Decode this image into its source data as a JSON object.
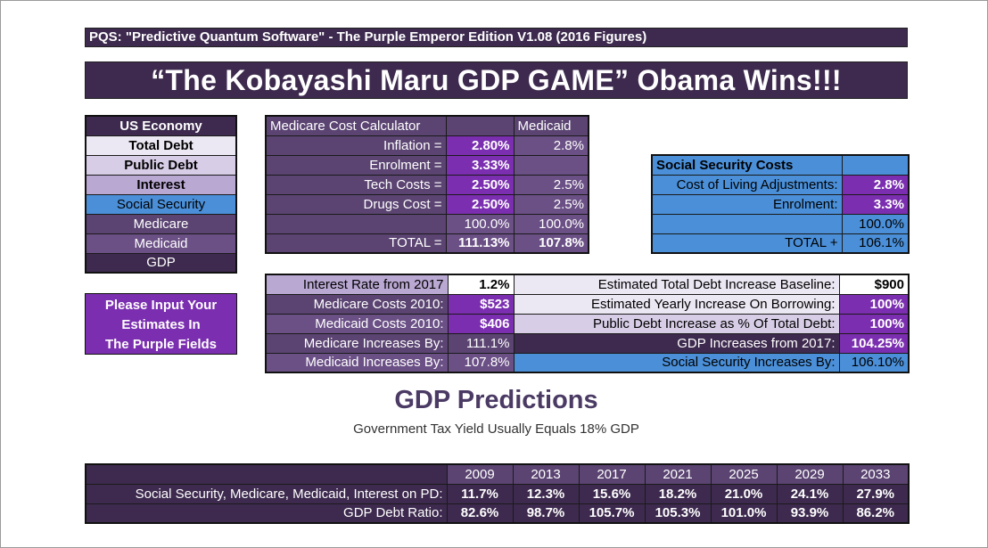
{
  "header": {
    "subtitle": "PQS: \"Predictive Quantum Software\" - The Purple Emperor Edition V1.08 (2016 Figures)",
    "title": "“The Kobayashi Maru GDP GAME” Obama Wins!!!"
  },
  "us_economy": {
    "heading": "US Economy",
    "items": [
      "Total Debt",
      "Public Debt",
      "Interest",
      "Social Security",
      "Medicare",
      "Medicaid",
      "GDP"
    ]
  },
  "input_prompt": {
    "lines": [
      "Please Input Your",
      "Estimates In",
      "The Purple Fields"
    ]
  },
  "medicare_calc": {
    "heading": "Medicare Cost Calculator",
    "medicaid_heading": "Medicaid",
    "rows": [
      {
        "label": "Inflation =",
        "medicare": "2.80%",
        "medicaid": "2.8%"
      },
      {
        "label": "Enrolment =",
        "medicare": "3.33%",
        "medicaid": ""
      },
      {
        "label": "Tech Costs =",
        "medicare": "2.50%",
        "medicaid": "2.5%"
      },
      {
        "label": "Drugs Cost =",
        "medicare": "2.50%",
        "medicaid": "2.5%"
      },
      {
        "label": "",
        "medicare": "100.0%",
        "medicaid": "100.0%"
      },
      {
        "label": "TOTAL =",
        "medicare": "111.13%",
        "medicaid": "107.8%"
      }
    ]
  },
  "social_security": {
    "heading": "Social Security Costs",
    "rows": [
      {
        "label": "Cost of Living Adjustments:",
        "value": "2.8%"
      },
      {
        "label": "Enrolment:",
        "value": "3.3%"
      },
      {
        "label": "",
        "value": "100.0%"
      },
      {
        "label": "TOTAL +",
        "value": "106.1%"
      }
    ]
  },
  "params_left": [
    {
      "label": "Interest Rate from 2017",
      "value": "1.2%"
    },
    {
      "label": "Medicare Costs 2010:",
      "value": "$523"
    },
    {
      "label": "Medicaid Costs 2010:",
      "value": "$406"
    },
    {
      "label": "Medicare Increases By:",
      "value": "111.1%"
    },
    {
      "label": "Medicaid Increases By:",
      "value": "107.8%"
    }
  ],
  "params_right": [
    {
      "label": "Estimated Total Debt Increase Baseline:",
      "value": "$900"
    },
    {
      "label": "Estimated Yearly Increase On Borrowing:",
      "value": "100%"
    },
    {
      "label": "Public Debt Increase as % Of Total Debt:",
      "value": "100%"
    },
    {
      "label": "GDP Increases from 2017:",
      "value": "104.25%"
    },
    {
      "label": "Social Security Increases By:",
      "value": "106.10%"
    }
  ],
  "predictions": {
    "title": "GDP Predictions",
    "subtitle": "Government Tax Yield Usually Equals 18% GDP",
    "years": [
      "2009",
      "2013",
      "2017",
      "2021",
      "2025",
      "2029",
      "2033"
    ],
    "rows": [
      {
        "label": "Social Security, Medicare, Medicaid, Interest on PD:",
        "values": [
          "11.7%",
          "12.3%",
          "15.6%",
          "18.2%",
          "21.0%",
          "24.1%",
          "27.9%"
        ]
      },
      {
        "label": "GDP Debt Ratio:",
        "values": [
          "82.6%",
          "98.7%",
          "105.7%",
          "105.3%",
          "101.0%",
          "93.9%",
          "86.2%"
        ]
      }
    ]
  }
}
